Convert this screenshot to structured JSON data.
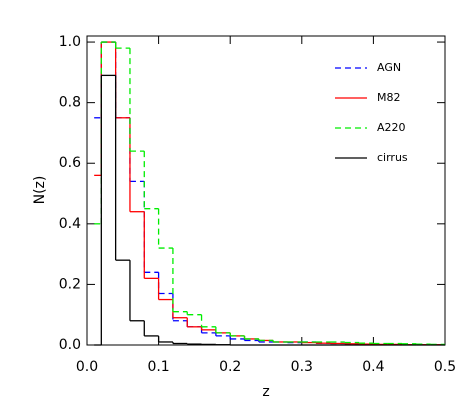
{
  "chart_data": {
    "type": "histogram",
    "xlabel": "z",
    "ylabel": "N(z)",
    "bins": [
      0.01,
      0.02,
      0.04,
      0.06,
      0.08,
      0.1,
      0.12,
      0.14,
      0.16,
      0.18,
      0.2,
      0.22,
      0.24,
      0.26,
      0.28,
      0.3,
      0.32,
      0.34,
      0.36,
      0.38,
      0.4,
      0.42,
      0.44,
      0.46,
      0.48,
      0.5
    ],
    "series": [
      {
        "name": "AGN",
        "color": "#0000ff",
        "dash": "6,4",
        "values": [
          0.75,
          1.0,
          0.75,
          0.54,
          0.24,
          0.17,
          0.08,
          0.06,
          0.04,
          0.03,
          0.02,
          0.015,
          0.01,
          0.01,
          0.008,
          0.01,
          0.006,
          0.005,
          0.004,
          0.003,
          0.002,
          0.002,
          0.001,
          0.001,
          0.001
        ]
      },
      {
        "name": "M82",
        "color": "#ff0000",
        "dash": "none",
        "values": [
          0.56,
          1.0,
          0.75,
          0.44,
          0.22,
          0.15,
          0.09,
          0.06,
          0.05,
          0.04,
          0.03,
          0.02,
          0.015,
          0.01,
          0.01,
          0.008,
          0.006,
          0.005,
          0.004,
          0.003,
          0.002,
          0.002,
          0.001,
          0.001,
          0.001
        ]
      },
      {
        "name": "A220",
        "color": "#00ee00",
        "dash": "6,4",
        "values": [
          0.4,
          1.0,
          0.98,
          0.64,
          0.45,
          0.32,
          0.11,
          0.1,
          0.06,
          0.04,
          0.03,
          0.02,
          0.015,
          0.01,
          0.01,
          0.01,
          0.01,
          0.01,
          0.008,
          0.006,
          0.005,
          0.005,
          0.004,
          0.003,
          0.002
        ]
      },
      {
        "name": "cirrus",
        "color": "#000000",
        "dash": "none",
        "values": [
          0,
          0.89,
          0.28,
          0.08,
          0.03,
          0.01,
          0.005,
          0.003,
          0.002,
          0.001,
          0,
          0,
          0,
          0,
          0,
          0,
          0,
          0,
          0,
          0,
          0,
          0,
          0,
          0,
          0
        ]
      }
    ],
    "xlim": [
      0,
      0.5
    ],
    "xticks": [
      {
        "value": 0,
        "label": "0.0"
      },
      0.1,
      0.2,
      0.3,
      0.4,
      0.5
    ],
    "ylim": [
      0,
      1.02
    ],
    "yticks": [
      {
        "value": 0,
        "label": "0.0"
      },
      0.2,
      0.4,
      0.6,
      0.8,
      {
        "value": 1,
        "label": "1.0"
      }
    ]
  }
}
